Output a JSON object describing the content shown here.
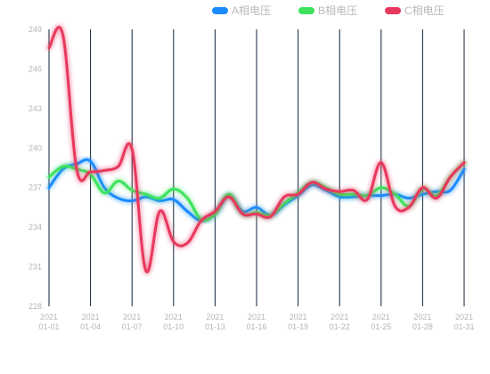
{
  "chart_data": {
    "type": "line",
    "x": [
      "2021 01-01",
      "2021 01-02",
      "2021 01-03",
      "2021 01-04",
      "2021 01-05",
      "2021 01-06",
      "2021 01-07",
      "2021 01-08",
      "2021 01-09",
      "2021 01-10",
      "2021 01-11",
      "2021 01-12",
      "2021 01-13",
      "2021 01-14",
      "2021 01-15",
      "2021 01-16",
      "2021 01-17",
      "2021 01-18",
      "2021 01-19",
      "2021 01-20",
      "2021 01-21",
      "2021 01-22",
      "2021 01-23",
      "2021 01-24",
      "2021 01-25",
      "2021 01-26",
      "2021 01-27",
      "2021 01-28",
      "2021 01-29",
      "2021 01-30",
      "2021 01-31"
    ],
    "x_tick_labels": [
      {
        "year": "2021",
        "date": "01-01"
      },
      {
        "year": "2021",
        "date": "01-04"
      },
      {
        "year": "2021",
        "date": "01-07"
      },
      {
        "year": "2021",
        "date": "01-10"
      },
      {
        "year": "2021",
        "date": "01-13"
      },
      {
        "year": "2021",
        "date": "01-16"
      },
      {
        "year": "2021",
        "date": "01-19"
      },
      {
        "year": "2021",
        "date": "01-22"
      },
      {
        "year": "2021",
        "date": "01-25"
      },
      {
        "year": "2021",
        "date": "01-28"
      },
      {
        "year": "2021",
        "date": "01-31"
      }
    ],
    "y_ticks": [
      "249",
      "246",
      "243",
      "240",
      "237",
      "234",
      "231",
      "228"
    ],
    "ylim": [
      228,
      249
    ],
    "grid": "vertical lines at labeled dates",
    "legend_position": "top-right",
    "series": [
      {
        "name": "A相电压",
        "color": "#1a8cff",
        "values": [
          237.0,
          238.4,
          238.8,
          239.0,
          237.0,
          236.2,
          236.0,
          236.3,
          236.0,
          236.1,
          235.2,
          234.5,
          235.0,
          236.4,
          235.2,
          235.5,
          234.9,
          235.7,
          236.4,
          237.2,
          236.8,
          236.3,
          236.3,
          236.4,
          236.4,
          236.5,
          236.2,
          236.5,
          236.7,
          236.8,
          238.4
        ]
      },
      {
        "name": "B相电压",
        "color": "#3ee35d",
        "values": [
          237.8,
          238.6,
          238.4,
          238.0,
          236.6,
          237.5,
          236.8,
          236.5,
          236.2,
          236.9,
          236.2,
          234.6,
          235.0,
          236.5,
          235.0,
          235.1,
          234.9,
          235.8,
          236.6,
          237.4,
          237.0,
          236.5,
          236.5,
          236.4,
          237.0,
          236.5,
          235.6,
          236.9,
          236.4,
          237.8,
          238.9
        ]
      },
      {
        "name": "C相电压",
        "color": "#e8385d",
        "values": [
          247.6,
          248.6,
          238.4,
          238.2,
          238.3,
          238.6,
          239.9,
          230.7,
          235.2,
          232.9,
          232.8,
          234.5,
          235.2,
          236.3,
          235.0,
          235.0,
          234.8,
          236.3,
          236.5,
          237.4,
          236.9,
          236.7,
          236.8,
          236.1,
          238.9,
          235.6,
          235.5,
          237.0,
          236.2,
          237.8,
          238.9
        ]
      }
    ]
  }
}
